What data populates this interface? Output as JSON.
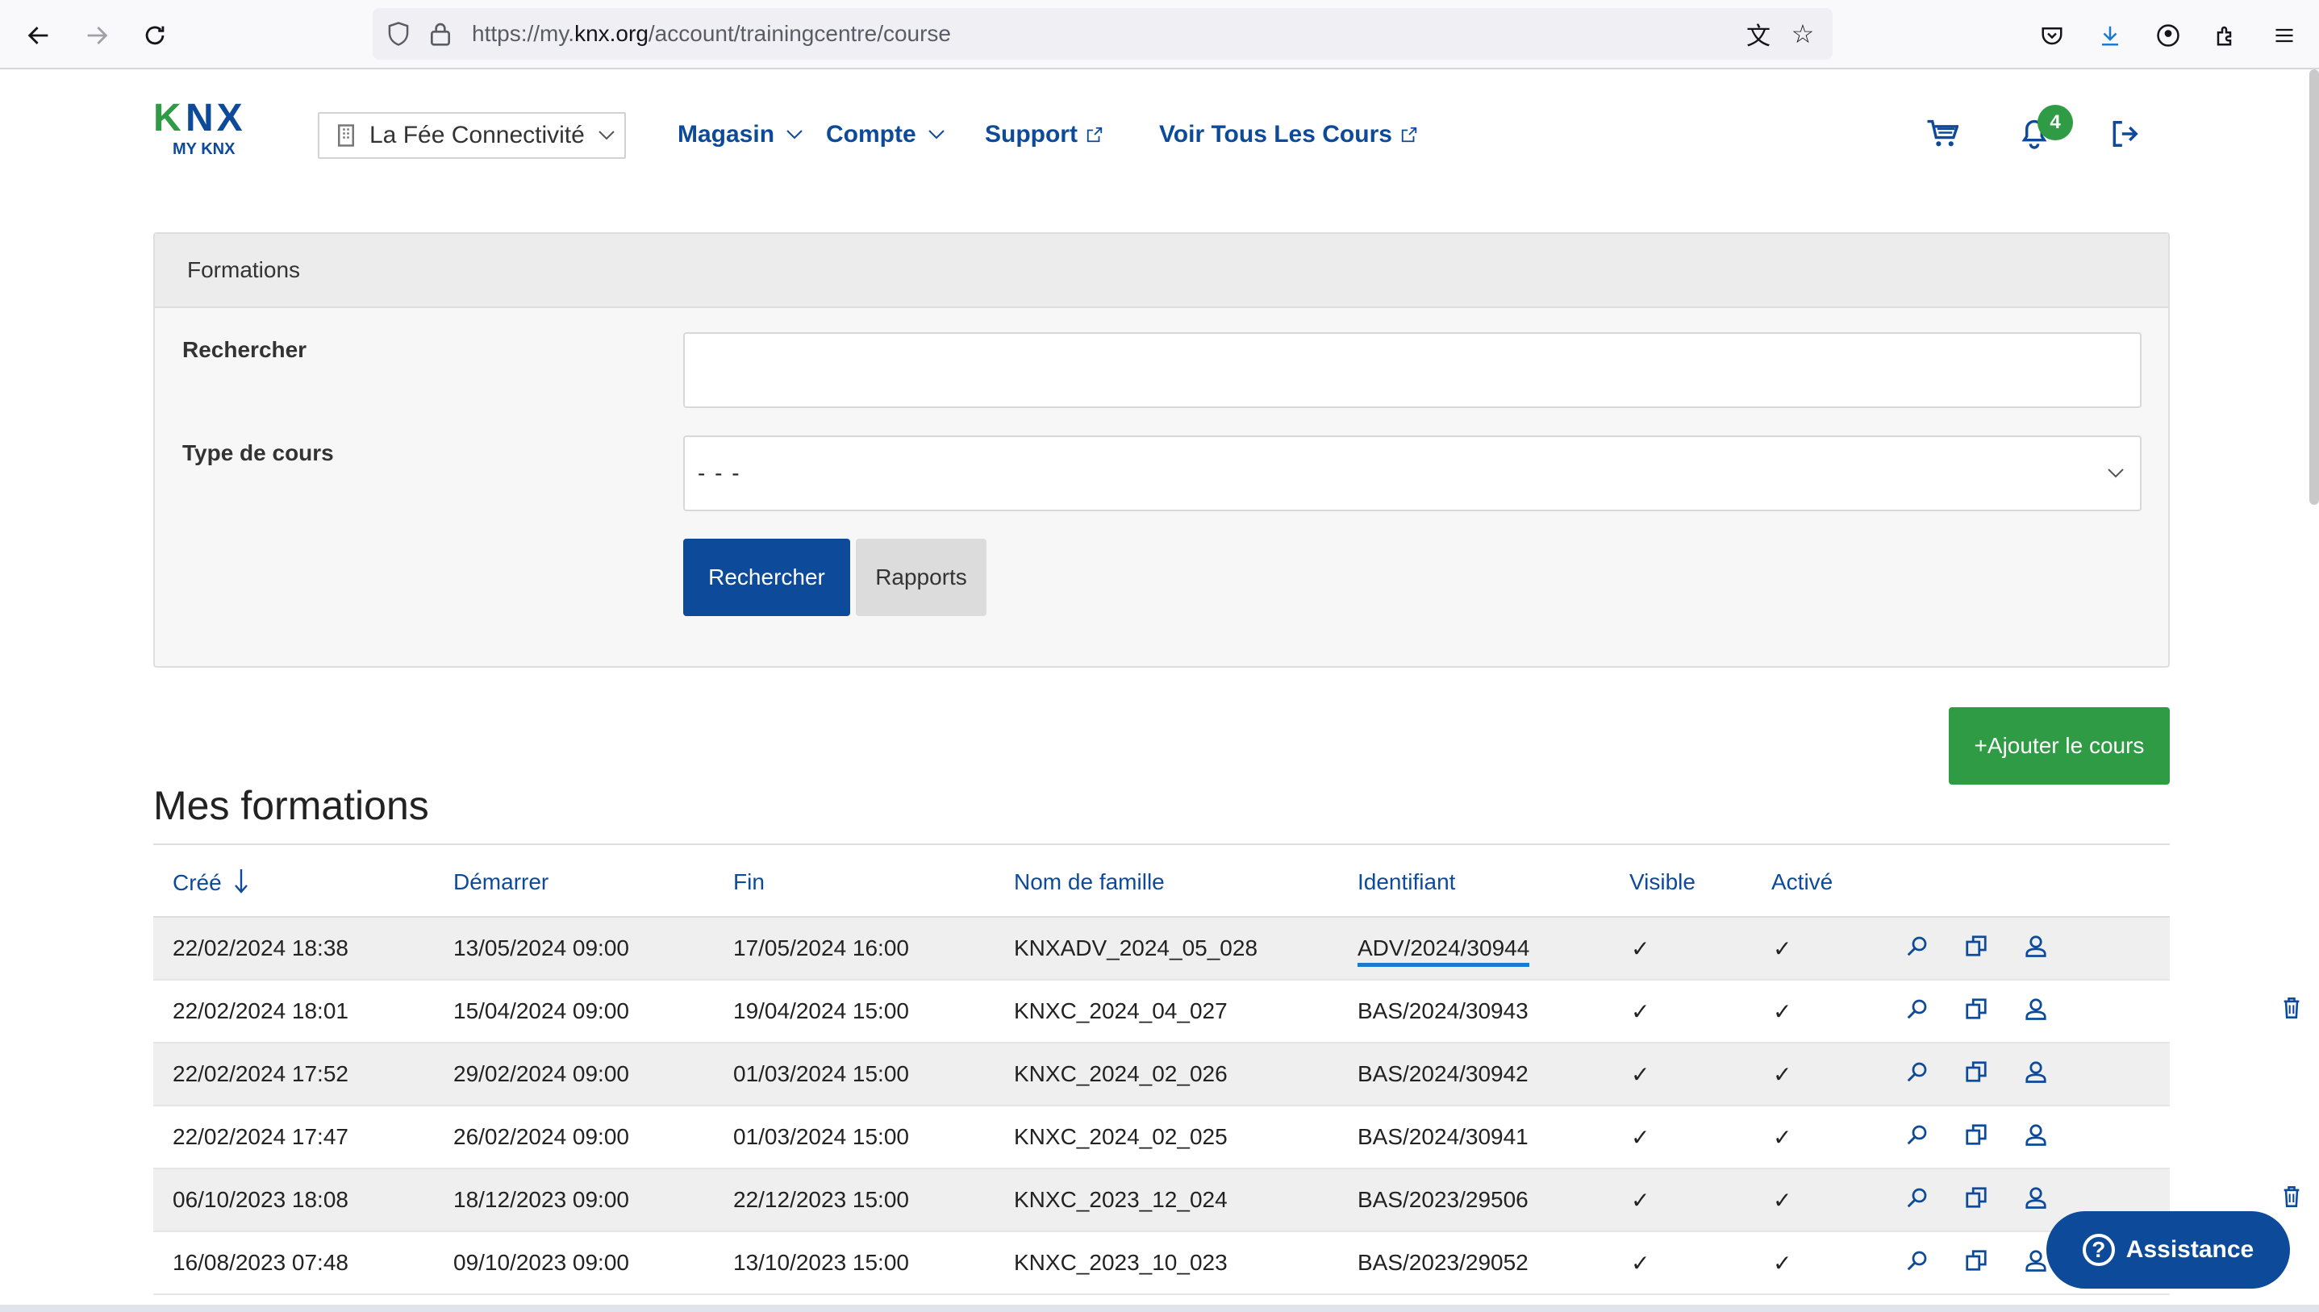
{
  "browser": {
    "url_prefix": "https://my.",
    "url_domain": "knx.org",
    "url_path": "/account/trainingcentre/course"
  },
  "header": {
    "logo_text": "KNX",
    "logo_sub": "MY KNX",
    "org_name": "La Fée Connectivité",
    "nav": {
      "shop": "Magasin",
      "account": "Compte",
      "support": "Support",
      "all_courses": "Voir Tous Les Cours"
    },
    "notification_count": "4"
  },
  "search_panel": {
    "title": "Formations",
    "search_label": "Rechercher",
    "search_value": "",
    "course_type_label": "Type de cours",
    "course_type_value": "- - -",
    "search_button": "Rechercher",
    "reports_button": "Rapports"
  },
  "add_course_button": "+Ajouter le cours",
  "section_title": "Mes formations",
  "table": {
    "columns": {
      "created": "Créé",
      "start": "Démarrer",
      "end": "Fin",
      "family_name": "Nom de famille",
      "identifier": "Identifiant",
      "visible": "Visible",
      "active": "Activé"
    },
    "rows": [
      {
        "created": "22/02/2024 18:38",
        "start": "13/05/2024 09:00",
        "end": "17/05/2024 16:00",
        "family_name": "KNXADV_2024_05_028",
        "identifier": "ADV/2024/30944",
        "visible": "✓",
        "active": "✓",
        "deletable": false
      },
      {
        "created": "22/02/2024 18:01",
        "start": "15/04/2024 09:00",
        "end": "19/04/2024 15:00",
        "family_name": "KNXC_2024_04_027",
        "identifier": "BAS/2024/30943",
        "visible": "✓",
        "active": "✓",
        "deletable": true
      },
      {
        "created": "22/02/2024 17:52",
        "start": "29/02/2024 09:00",
        "end": "01/03/2024 15:00",
        "family_name": "KNXC_2024_02_026",
        "identifier": "BAS/2024/30942",
        "visible": "✓",
        "active": "✓",
        "deletable": false
      },
      {
        "created": "22/02/2024 17:47",
        "start": "26/02/2024 09:00",
        "end": "01/03/2024 15:00",
        "family_name": "KNXC_2024_02_025",
        "identifier": "BAS/2024/30941",
        "visible": "✓",
        "active": "✓",
        "deletable": false
      },
      {
        "created": "06/10/2023 18:08",
        "start": "18/12/2023 09:00",
        "end": "22/12/2023 15:00",
        "family_name": "KNXC_2023_12_024",
        "identifier": "BAS/2023/29506",
        "visible": "✓",
        "active": "✓",
        "deletable": true
      },
      {
        "created": "16/08/2023 07:48",
        "start": "09/10/2023 09:00",
        "end": "13/10/2023 15:00",
        "family_name": "KNXC_2023_10_023",
        "identifier": "BAS/2023/29052",
        "visible": "✓",
        "active": "✓",
        "deletable": false
      }
    ]
  },
  "assistance_button": "Assistance",
  "colors": {
    "primary": "#0d4a99",
    "success": "#2f9b44",
    "link_underline": "#1a7ad1"
  }
}
